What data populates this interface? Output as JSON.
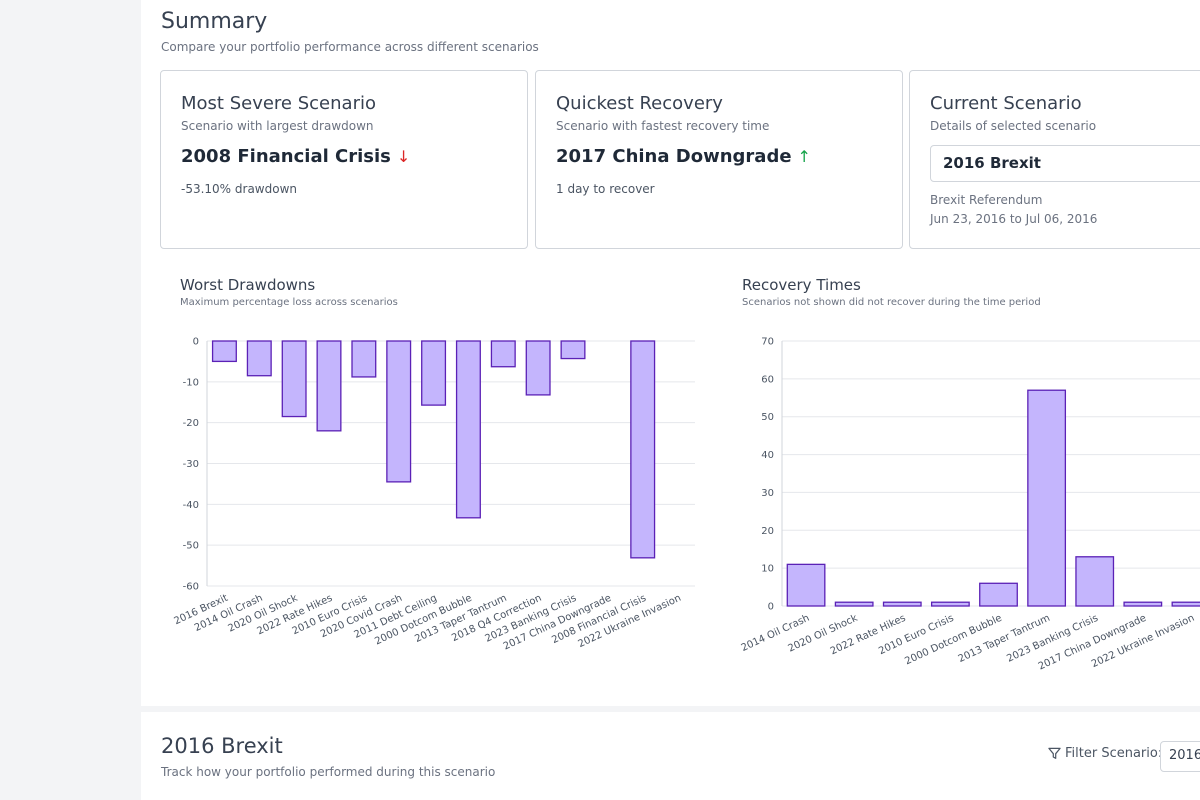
{
  "summary": {
    "title": "Summary",
    "subtitle": "Compare your portfolio performance across different scenarios"
  },
  "cards": {
    "severe": {
      "title": "Most Severe Scenario",
      "subtitle": "Scenario with largest drawdown",
      "value": "2008 Financial Crisis",
      "arrow": "↓",
      "note": "-53.10% drawdown"
    },
    "recovery": {
      "title": "Quickest Recovery",
      "subtitle": "Scenario with fastest recovery time",
      "value": "2017 China Downgrade",
      "arrow": "↑",
      "note": "1 day to recover"
    },
    "current": {
      "title": "Current Scenario",
      "subtitle": "Details of selected scenario",
      "selected": "2016 Brexit",
      "description": "Brexit Referendum",
      "dates": "Jun 23, 2016 to Jul 06, 2016"
    }
  },
  "charts_text": {
    "drawdowns_title": "Worst Drawdowns",
    "drawdowns_subtitle": "Maximum percentage loss across scenarios",
    "recovery_title": "Recovery Times",
    "recovery_subtitle": "Scenarios not shown did not recover during the time period"
  },
  "section": {
    "title": "2016 Brexit",
    "subtitle": "Track how your portfolio performed during this scenario",
    "filter_label": "Filter Scenario:",
    "filter_value": "2016"
  },
  "colors": {
    "bar_fill": "#c4b5fd",
    "bar_stroke": "#5b21b6"
  },
  "chart_data": [
    {
      "type": "bar",
      "title": "Worst Drawdowns",
      "categories": [
        "2016 Brexit",
        "2014 Oil Crash",
        "2020 Oil Shock",
        "2022 Rate Hikes",
        "2010 Euro Crisis",
        "2020 Covid Crash",
        "2011 Debt Ceiling",
        "2000 Dotcom Bubble",
        "2013 Taper Tantrum",
        "2018 Q4 Correction",
        "2023 Banking Crisis",
        "2017 China Downgrade",
        "2008 Financial Crisis",
        "2022 Ukraine Invasion"
      ],
      "values": [
        -5,
        -8.5,
        -18.5,
        -22,
        -8.8,
        -34.5,
        -15.7,
        -43.3,
        -6.3,
        -13.2,
        -4.3,
        0,
        -53.1,
        0
      ],
      "yticks": [
        0,
        -10,
        -20,
        -30,
        -40,
        -50,
        -60
      ],
      "ylim": [
        -60,
        0
      ],
      "grid": true
    },
    {
      "type": "bar",
      "title": "Recovery Times",
      "categories": [
        "2014 Oil Crash",
        "2020 Oil Shock",
        "2022 Rate Hikes",
        "2010 Euro Crisis",
        "2000 Dotcom Bubble",
        "2013 Taper Tantrum",
        "2023 Banking Crisis",
        "2017 China Downgrade",
        "2022 Ukraine Invasion"
      ],
      "values": [
        11,
        1,
        1,
        1,
        6,
        57,
        13,
        1,
        1
      ],
      "yticks": [
        0,
        10,
        20,
        30,
        40,
        50,
        60,
        70
      ],
      "ylim": [
        0,
        70
      ],
      "grid": true
    }
  ]
}
